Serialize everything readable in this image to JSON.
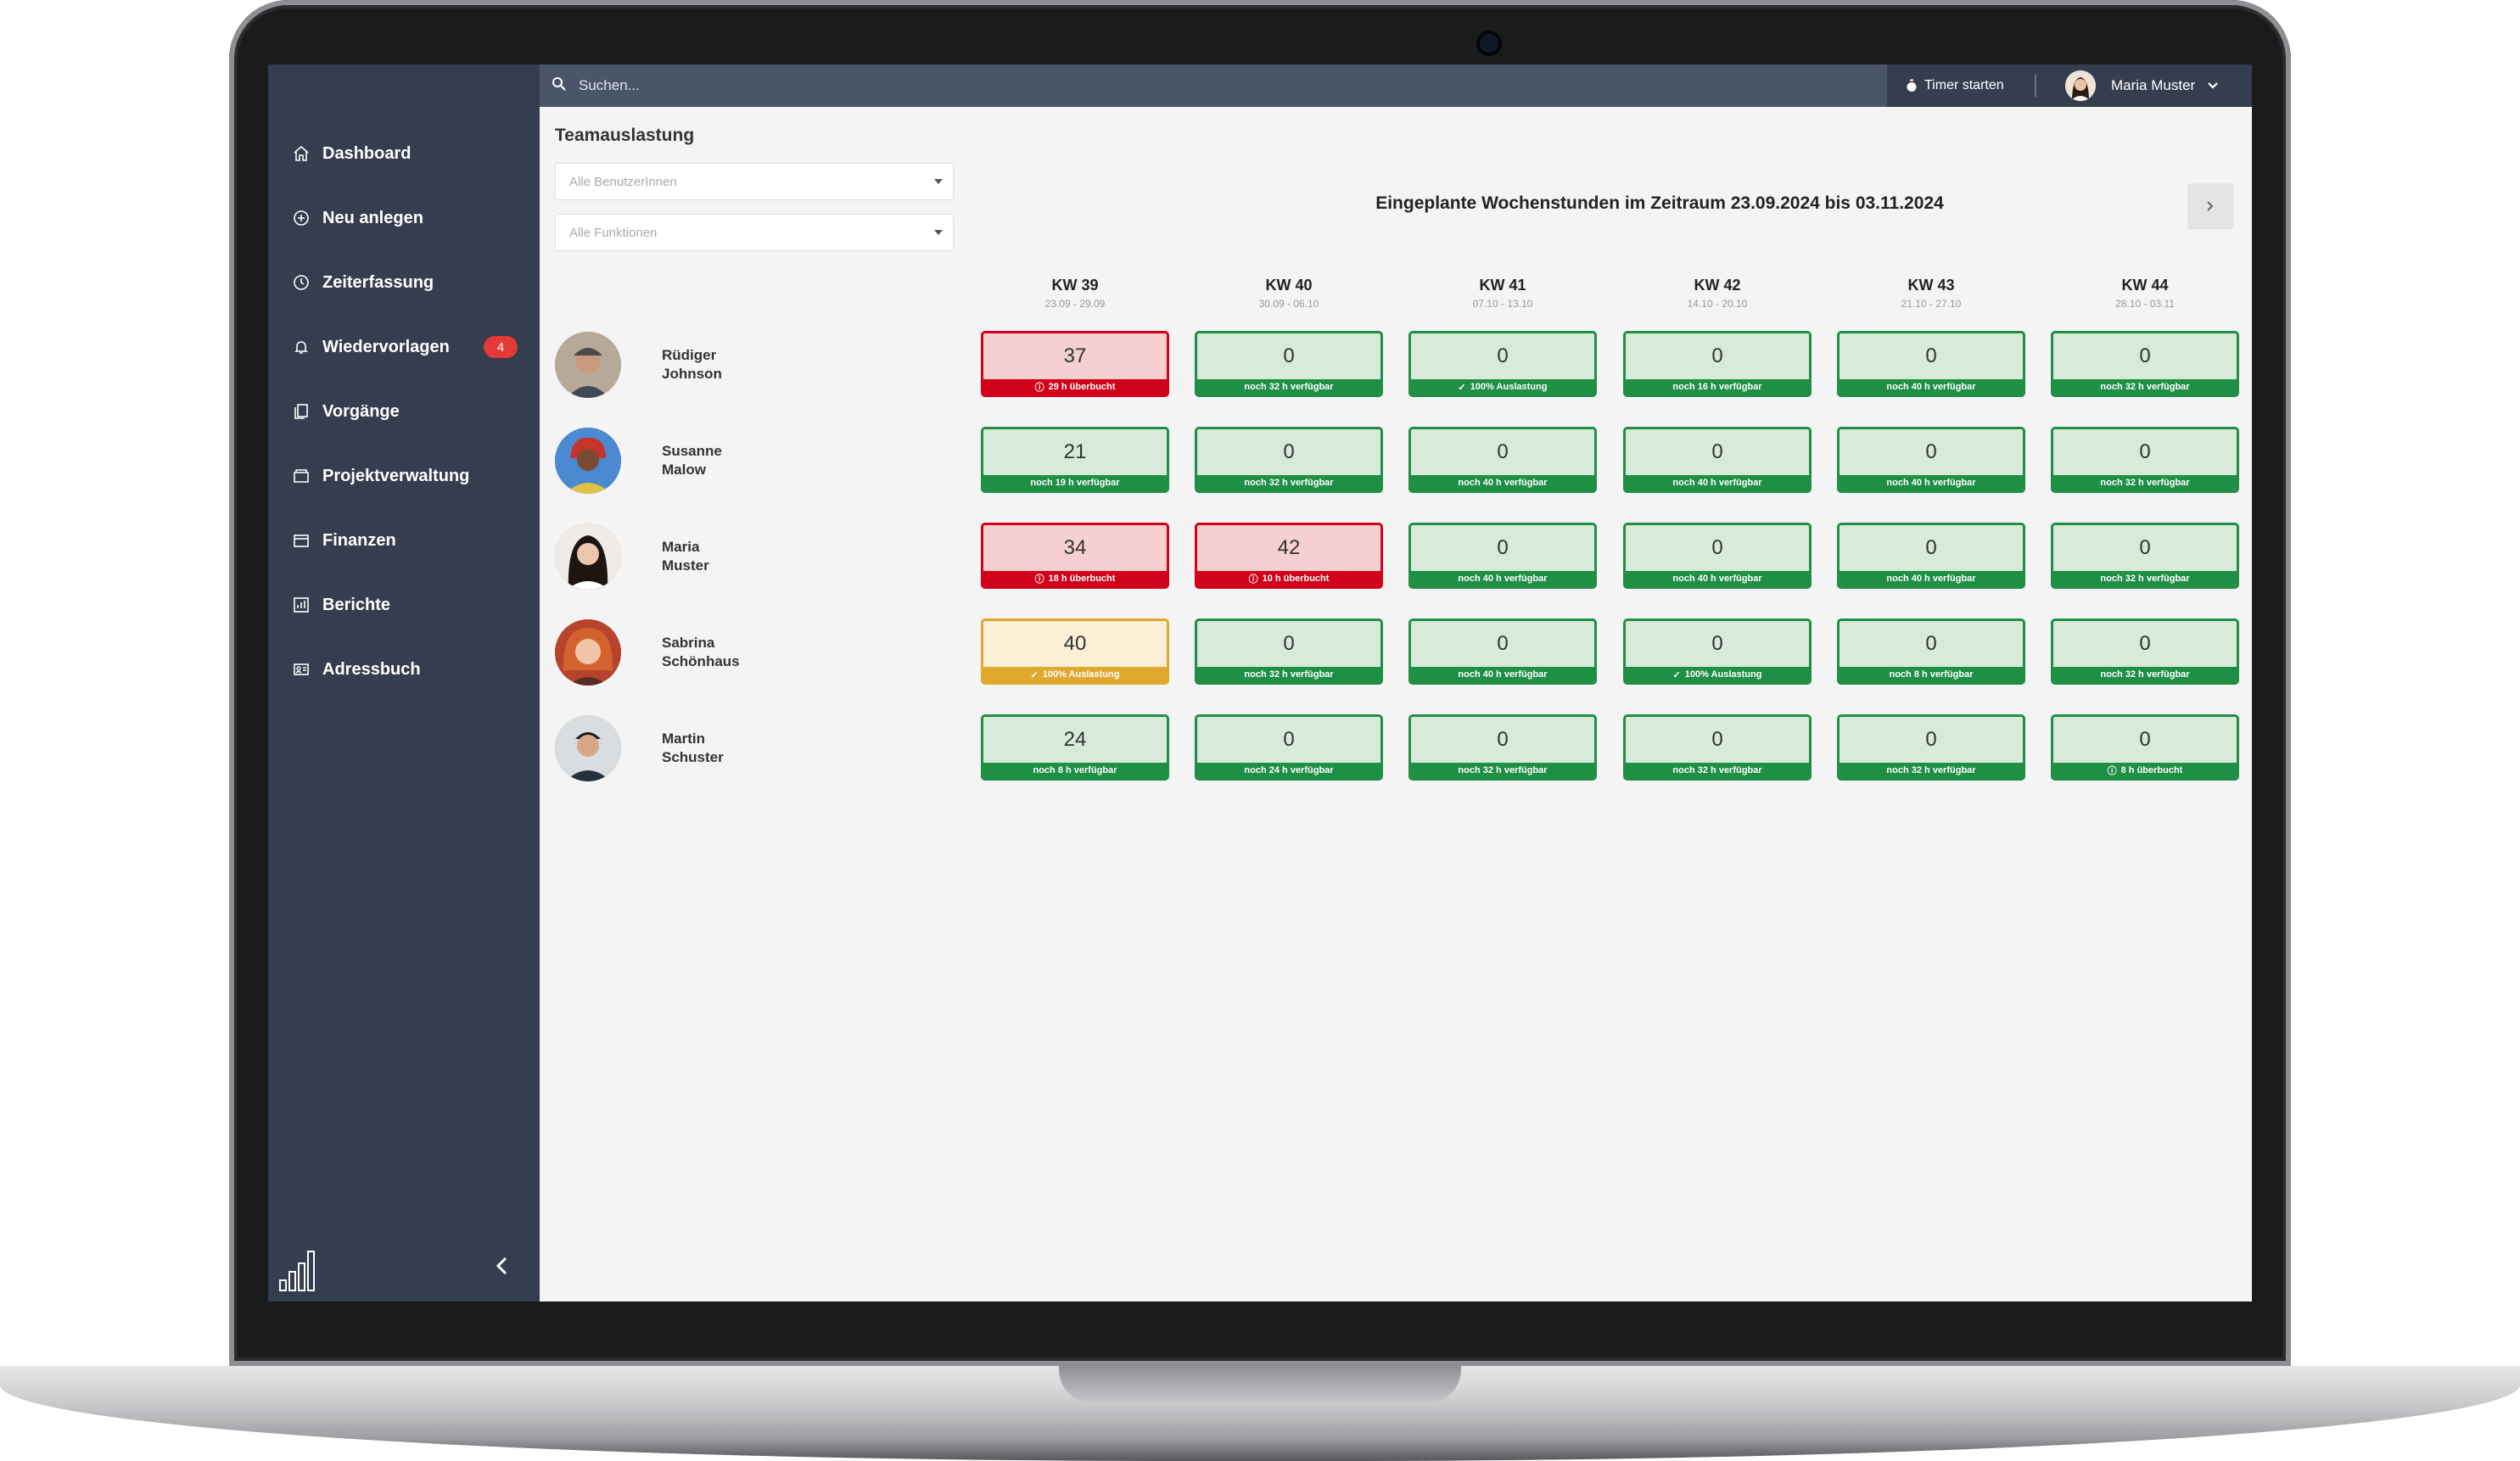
{
  "search": {
    "placeholder": "Suchen..."
  },
  "header": {
    "timer_label": "Timer starten",
    "user_name": "Maria Muster"
  },
  "sidebar": {
    "items": [
      {
        "label": "Dashboard",
        "icon": "home-icon"
      },
      {
        "label": "Neu anlegen",
        "icon": "plus-circle-icon"
      },
      {
        "label": "Zeiterfassung",
        "icon": "clock-icon"
      },
      {
        "label": "Wiedervorlagen",
        "icon": "bell-icon",
        "badge": "4"
      },
      {
        "label": "Vorgänge",
        "icon": "documents-icon"
      },
      {
        "label": "Projektverwaltung",
        "icon": "folder-icon"
      },
      {
        "label": "Finanzen",
        "icon": "wallet-icon"
      },
      {
        "label": "Berichte",
        "icon": "chart-icon"
      },
      {
        "label": "Adressbuch",
        "icon": "address-card-icon"
      }
    ]
  },
  "main": {
    "title": "Teamauslastung",
    "filter_users_placeholder": "Alle BenutzerInnen",
    "filter_functions_placeholder": "Alle Funktionen",
    "heading": "Eingeplante Wochenstunden im Zeitraum 23.09.2024 bis 03.11.2024",
    "weeks": [
      {
        "label": "KW 39",
        "range": "23.09 - 29.09"
      },
      {
        "label": "KW 40",
        "range": "30.09 - 06.10"
      },
      {
        "label": "KW 41",
        "range": "07.10 - 13.10"
      },
      {
        "label": "KW 42",
        "range": "14.10 - 20.10"
      },
      {
        "label": "KW 43",
        "range": "21.10 - 27.10"
      },
      {
        "label": "KW 44",
        "range": "28.10 - 03.11"
      }
    ],
    "people": [
      {
        "first": "Rüdiger",
        "last": "Johnson",
        "cells": [
          {
            "value": "37",
            "status": "red",
            "note": "29 h überbucht"
          },
          {
            "value": "0",
            "status": "green",
            "note": "noch 32 h verfügbar"
          },
          {
            "value": "0",
            "status": "green",
            "note": "100% Auslastung"
          },
          {
            "value": "0",
            "status": "green",
            "note": "noch 16 h verfügbar"
          },
          {
            "value": "0",
            "status": "green",
            "note": "noch 40 h verfügbar"
          },
          {
            "value": "0",
            "status": "green",
            "note": "noch 32 h verfügbar"
          }
        ]
      },
      {
        "first": "Susanne",
        "last": "Malow",
        "cells": [
          {
            "value": "21",
            "status": "green",
            "note": "noch 19 h verfügbar"
          },
          {
            "value": "0",
            "status": "green",
            "note": "noch 32 h verfügbar"
          },
          {
            "value": "0",
            "status": "green",
            "note": "noch 40 h verfügbar"
          },
          {
            "value": "0",
            "status": "green",
            "note": "noch 40 h verfügbar"
          },
          {
            "value": "0",
            "status": "green",
            "note": "noch 40 h verfügbar"
          },
          {
            "value": "0",
            "status": "green",
            "note": "noch 32 h verfügbar"
          }
        ]
      },
      {
        "first": "Maria",
        "last": "Muster",
        "cells": [
          {
            "value": "34",
            "status": "red",
            "note": "18 h überbucht"
          },
          {
            "value": "42",
            "status": "red",
            "note": "10 h überbucht"
          },
          {
            "value": "0",
            "status": "green",
            "note": "noch 40 h verfügbar"
          },
          {
            "value": "0",
            "status": "green",
            "note": "noch 40 h verfügbar"
          },
          {
            "value": "0",
            "status": "green",
            "note": "noch 40 h verfügbar"
          },
          {
            "value": "0",
            "status": "green",
            "note": "noch 32 h verfügbar"
          }
        ]
      },
      {
        "first": "Sabrina",
        "last": "Schönhaus",
        "cells": [
          {
            "value": "40",
            "status": "yellow",
            "note": "100% Auslastung"
          },
          {
            "value": "0",
            "status": "green",
            "note": "noch 32 h verfügbar"
          },
          {
            "value": "0",
            "status": "green",
            "note": "noch 40 h verfügbar"
          },
          {
            "value": "0",
            "status": "green",
            "note": "100% Auslastung"
          },
          {
            "value": "0",
            "status": "green",
            "note": "noch 8 h verfügbar"
          },
          {
            "value": "0",
            "status": "green",
            "note": "noch 32 h verfügbar"
          }
        ]
      },
      {
        "first": "Martin",
        "last": "Schuster",
        "cells": [
          {
            "value": "24",
            "status": "green",
            "note": "noch 8 h verfügbar"
          },
          {
            "value": "0",
            "status": "green",
            "note": "noch 24 h verfügbar"
          },
          {
            "value": "0",
            "status": "green",
            "note": "noch 32 h verfügbar"
          },
          {
            "value": "0",
            "status": "green",
            "note": "noch 32 h verfügbar"
          },
          {
            "value": "0",
            "status": "green",
            "note": "noch 32 h verfügbar"
          },
          {
            "value": "0",
            "status": "green",
            "note": "8 h überbucht"
          }
        ]
      }
    ]
  },
  "colors": {
    "sidebar": "#353e4f",
    "green": "#1f8f45",
    "red": "#d0021b",
    "yellow": "#e0a82e",
    "badge": "#e53935"
  }
}
